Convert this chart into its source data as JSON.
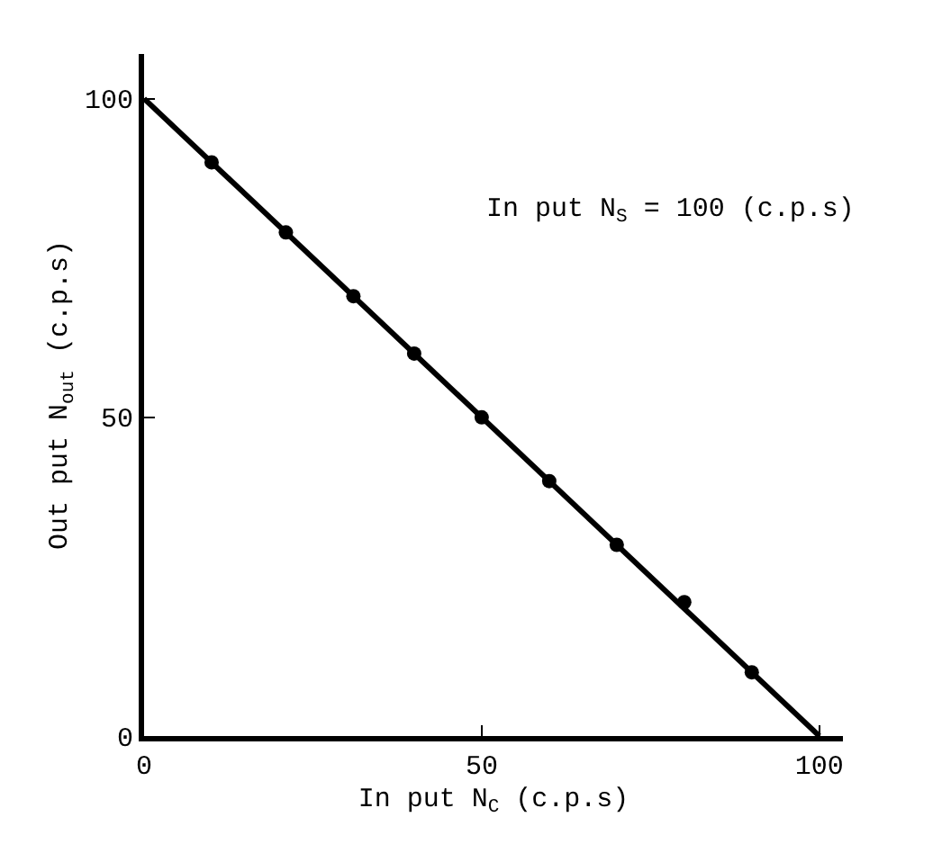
{
  "chart_data": {
    "type": "scatter",
    "xlabel": "In put N$_{C}$ (c.p.s)",
    "ylabel": "Out put N$_{out}$ (c.p.s)",
    "annotations": [
      "In put N$_{S}$ = 100 (c.p.s)"
    ],
    "xlim": [
      0,
      103.5
    ],
    "ylim": [
      0,
      107
    ],
    "xticks": [
      0,
      50,
      100
    ],
    "yticks": [
      0,
      50,
      100
    ],
    "grid": false,
    "marker": "circle",
    "series": [
      {
        "type": "line",
        "color": "#000000",
        "x": [
          0,
          100
        ],
        "values": [
          100,
          0
        ],
        "marker": "none",
        "line_style": "solid"
      },
      {
        "color": "#000000",
        "x": [
          10,
          21,
          31,
          40,
          50,
          60,
          70,
          80,
          90
        ],
        "values": [
          90,
          79,
          69,
          60,
          50,
          40,
          30,
          21,
          10
        ]
      }
    ]
  }
}
